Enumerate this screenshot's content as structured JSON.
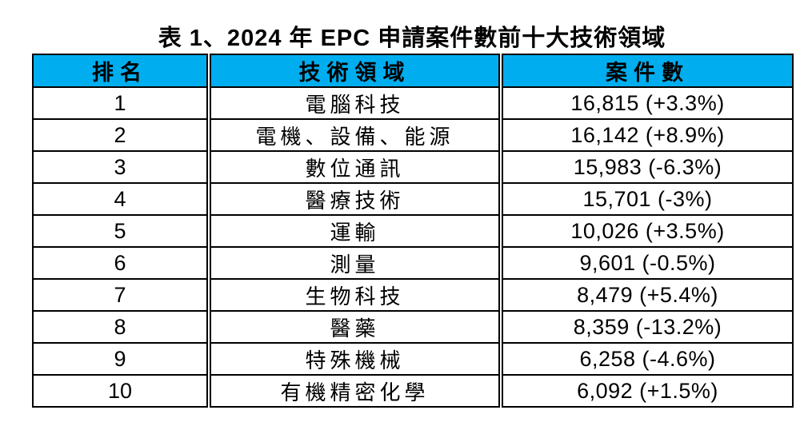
{
  "title": "表 1、2024 年 EPC 申請案件數前十大技術領域",
  "colors": {
    "header_bg": "#00AEEF",
    "border": "#000000",
    "text": "#000000"
  },
  "table": {
    "headers": {
      "rank": "排名",
      "field": "技術領域",
      "count": "案件數"
    },
    "rows": [
      {
        "rank": "1",
        "field": "電腦科技",
        "count": "16,815 (+3.3%)"
      },
      {
        "rank": "2",
        "field": "電機、設備、能源",
        "count": "16,142 (+8.9%)"
      },
      {
        "rank": "3",
        "field": "數位通訊",
        "count": "15,983 (-6.3%)"
      },
      {
        "rank": "4",
        "field": "醫療技術",
        "count": "15,701 (-3%)"
      },
      {
        "rank": "5",
        "field": "運輸",
        "count": "10,026 (+3.5%)"
      },
      {
        "rank": "6",
        "field": "測量",
        "count": "9,601 (-0.5%)"
      },
      {
        "rank": "7",
        "field": "生物科技",
        "count": "8,479 (+5.4%)"
      },
      {
        "rank": "8",
        "field": "醫藥",
        "count": "8,359 (-13.2%)"
      },
      {
        "rank": "9",
        "field": "特殊機械",
        "count": "6,258 (-4.6%)"
      },
      {
        "rank": "10",
        "field": "有機精密化學",
        "count": "6,092 (+1.5%)"
      }
    ]
  }
}
